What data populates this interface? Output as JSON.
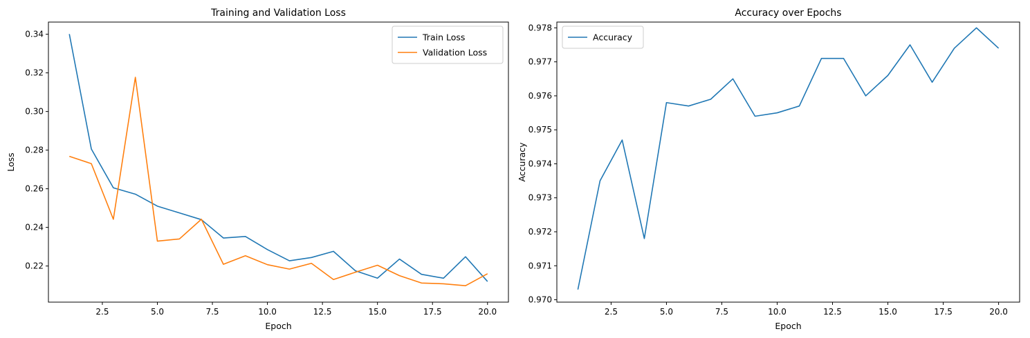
{
  "chart_data": [
    {
      "type": "line",
      "title": "Training and Validation Loss",
      "xlabel": "Epoch",
      "ylabel": "Loss",
      "xlim": [
        0.05,
        20.95
      ],
      "ylim": [
        0.2013,
        0.3463
      ],
      "xticks": [
        2.5,
        5.0,
        7.5,
        10.0,
        12.5,
        15.0,
        17.5,
        20.0
      ],
      "xtick_labels": [
        "2.5",
        "5.0",
        "7.5",
        "10.0",
        "12.5",
        "15.0",
        "17.5",
        "20.0"
      ],
      "yticks": [
        0.22,
        0.24,
        0.26,
        0.28,
        0.3,
        0.32,
        0.34
      ],
      "ytick_labels": [
        "0.22",
        "0.24",
        "0.26",
        "0.28",
        "0.30",
        "0.32",
        "0.34"
      ],
      "grid": false,
      "legend": "top-right",
      "x": [
        1,
        2,
        3,
        4,
        5,
        6,
        7,
        8,
        9,
        10,
        11,
        12,
        13,
        14,
        15,
        16,
        17,
        18,
        19,
        20
      ],
      "series": [
        {
          "name": "Train Loss",
          "color": "#1f77b4",
          "values": [
            0.3401,
            0.2806,
            0.2605,
            0.2572,
            0.251,
            0.2475,
            0.244,
            0.2345,
            0.2353,
            0.2285,
            0.2227,
            0.2244,
            0.2276,
            0.2175,
            0.2137,
            0.2236,
            0.2157,
            0.2137,
            0.2248,
            0.212
          ]
        },
        {
          "name": "Validation Loss",
          "color": "#ff7f0e",
          "values": [
            0.2768,
            0.273,
            0.2442,
            0.3177,
            0.2329,
            0.234,
            0.2442,
            0.2209,
            0.2253,
            0.2207,
            0.2184,
            0.2214,
            0.213,
            0.2168,
            0.2204,
            0.215,
            0.2112,
            0.2108,
            0.2098,
            0.216
          ]
        }
      ]
    },
    {
      "type": "line",
      "title": "Accuracy over Epochs",
      "xlabel": "Epoch",
      "ylabel": "Accuracy",
      "xlim": [
        0.05,
        20.95
      ],
      "ylim": [
        0.96993,
        0.97817
      ],
      "xticks": [
        2.5,
        5.0,
        7.5,
        10.0,
        12.5,
        15.0,
        17.5,
        20.0
      ],
      "xtick_labels": [
        "2.5",
        "5.0",
        "7.5",
        "10.0",
        "12.5",
        "15.0",
        "17.5",
        "20.0"
      ],
      "yticks": [
        0.97,
        0.971,
        0.972,
        0.973,
        0.974,
        0.975,
        0.976,
        0.977,
        0.978
      ],
      "ytick_labels": [
        "0.970",
        "0.971",
        "0.972",
        "0.973",
        "0.974",
        "0.975",
        "0.976",
        "0.977",
        "0.978"
      ],
      "grid": false,
      "legend": "top-left",
      "x": [
        1,
        2,
        3,
        4,
        5,
        6,
        7,
        8,
        9,
        10,
        11,
        12,
        13,
        14,
        15,
        16,
        17,
        18,
        19,
        20
      ],
      "series": [
        {
          "name": "Accuracy",
          "color": "#1f77b4",
          "values": [
            0.9703,
            0.9735,
            0.9747,
            0.9718,
            0.9758,
            0.9757,
            0.9759,
            0.9765,
            0.9754,
            0.9755,
            0.9757,
            0.9771,
            0.9771,
            0.976,
            0.9766,
            0.9775,
            0.9764,
            0.9774,
            0.978,
            0.9774
          ]
        }
      ]
    }
  ]
}
